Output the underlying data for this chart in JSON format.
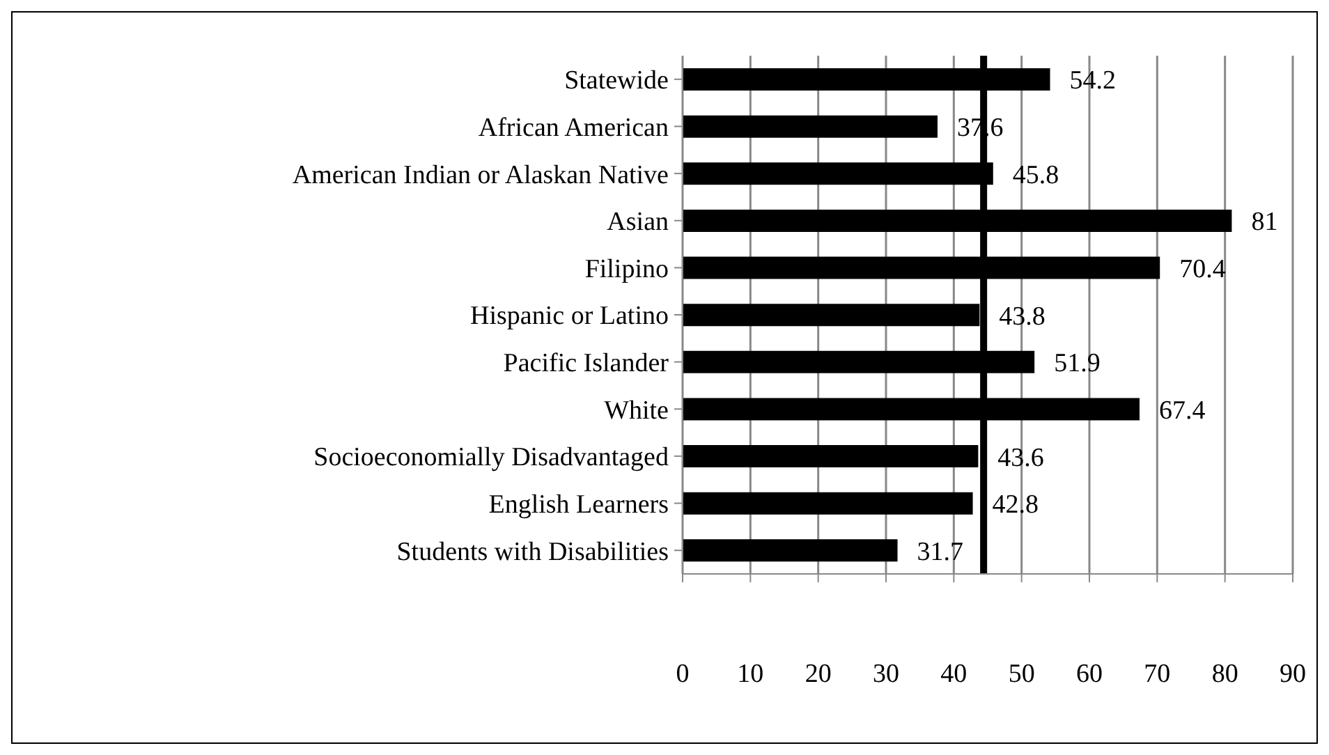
{
  "chart_data": {
    "type": "bar",
    "orientation": "horizontal",
    "categories": [
      "Statewide",
      "African American",
      "American Indian or Alaskan Native",
      "Asian",
      "Filipino",
      "Hispanic or Latino",
      "Pacific Islander",
      "White",
      "Socioeconomially Disadvantaged",
      "English Learners",
      "Students with Disabilities"
    ],
    "values": [
      54.2,
      37.6,
      45.8,
      81,
      70.4,
      43.8,
      51.9,
      67.4,
      43.6,
      42.8,
      31.7
    ],
    "color": "#000000",
    "data_labels": true,
    "xlim": [
      0,
      90
    ],
    "xticks": [
      0,
      10,
      20,
      30,
      40,
      50,
      60,
      70,
      80,
      90
    ],
    "grid": "x",
    "ref_lines": [
      {
        "axis": "x",
        "value": 44.4,
        "color": "#000000"
      }
    ]
  }
}
